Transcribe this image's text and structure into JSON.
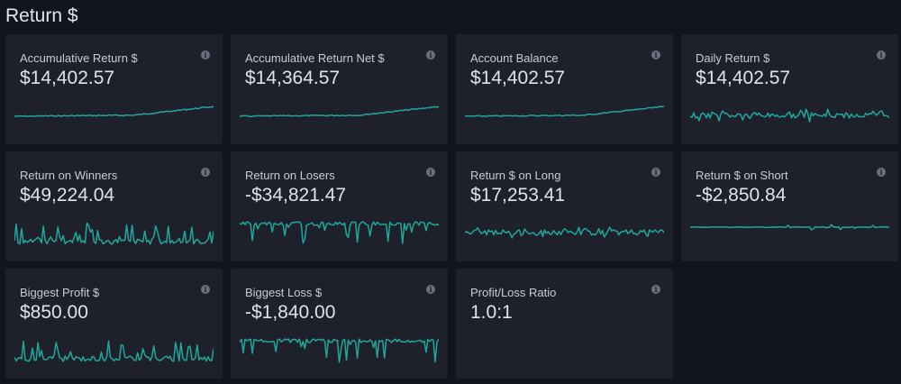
{
  "section": {
    "title": "Return $"
  },
  "colors": {
    "accent": "#1fa89a",
    "card": "#1e212b",
    "background": "#13151d"
  },
  "info_icon": "info-icon",
  "cards": [
    {
      "label": "Accumulative Return $",
      "value": "$14,402.57",
      "spark": "cumulative"
    },
    {
      "label": "Accumulative Return Net $",
      "value": "$14,364.57",
      "spark": "cumulative"
    },
    {
      "label": "Account Balance",
      "value": "$14,402.57",
      "spark": "cumulative"
    },
    {
      "label": "Daily Return $",
      "value": "$14,402.57",
      "spark": "noise"
    },
    {
      "label": "Return on Winners",
      "value": "$49,224.04",
      "spark": "spikes-up"
    },
    {
      "label": "Return on Losers",
      "value": "-$34,821.47",
      "spark": "spikes-down"
    },
    {
      "label": "Return $ on Long",
      "value": "$17,253.41",
      "spark": "noise"
    },
    {
      "label": "Return $ on Short",
      "value": "-$2,850.84",
      "spark": "flat"
    },
    {
      "label": "Biggest Profit $",
      "value": "$850.00",
      "spark": "spikes-up"
    },
    {
      "label": "Biggest Loss $",
      "value": "-$1,840.00",
      "spark": "spikes-down"
    },
    {
      "label": "Profit/Loss Ratio",
      "value": "1.0:1",
      "spark": "none"
    }
  ]
}
